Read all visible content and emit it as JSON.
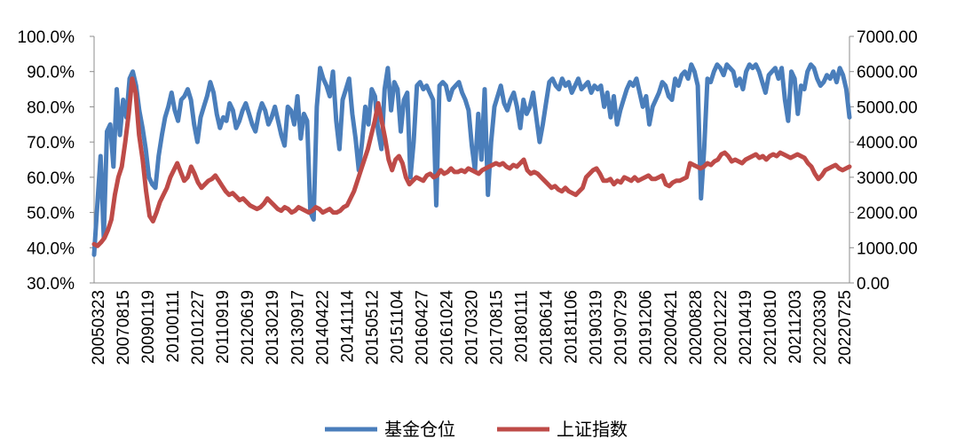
{
  "chart_data": {
    "type": "line",
    "x_tick_labels": [
      "20050323",
      "20070815",
      "20090119",
      "20100111",
      "20101227",
      "20110919",
      "20120619",
      "20130219",
      "20130917",
      "20140422",
      "20141114",
      "20150512",
      "20151104",
      "20160427",
      "20161024",
      "20170320",
      "20170815",
      "20180111",
      "20180614",
      "20181106",
      "20190319",
      "20190729",
      "20191206",
      "20200421",
      "20200828",
      "20201222",
      "20210419",
      "20210810",
      "20211203",
      "20220330",
      "20220725"
    ],
    "y_left": {
      "ticks": [
        "30.0%",
        "40.0%",
        "50.0%",
        "60.0%",
        "70.0%",
        "80.0%",
        "90.0%",
        "100.0%"
      ],
      "min": 30,
      "max": 100
    },
    "y_right": {
      "ticks": [
        "0.00",
        "1000.00",
        "2000.00",
        "3000.00",
        "4000.00",
        "5000.00",
        "6000.00",
        "7000.00"
      ],
      "min": 0,
      "max": 7000
    },
    "legend_position": "bottom",
    "series": [
      {
        "name": "基金仓位",
        "axis": "left",
        "color": "#4A7EBB",
        "values": [
          38,
          52,
          66,
          43,
          73,
          75,
          63,
          85,
          72,
          82,
          77,
          88,
          90,
          86,
          79,
          74,
          68,
          60,
          58,
          57,
          66,
          72,
          77,
          80,
          84,
          79,
          76,
          82,
          83,
          85,
          82,
          75,
          70,
          77,
          80,
          83,
          87,
          84,
          78,
          74,
          77,
          76,
          81,
          79,
          74,
          76,
          79,
          81,
          78,
          75,
          73,
          78,
          81,
          79,
          75,
          77,
          80,
          76,
          72,
          69,
          80,
          79,
          75,
          83,
          71,
          78,
          76,
          50,
          48,
          80,
          91,
          88,
          86,
          83,
          90,
          76,
          68,
          82,
          85,
          88,
          78,
          71,
          62,
          70,
          80,
          75,
          85,
          83,
          73,
          68,
          85,
          91,
          79,
          87,
          85,
          73,
          82,
          84,
          60,
          70,
          86,
          87,
          85,
          86,
          84,
          82,
          52,
          86,
          87,
          86,
          82,
          85,
          86,
          87,
          84,
          82,
          79,
          69,
          62,
          78,
          65,
          85,
          55,
          70,
          80,
          83,
          86,
          81,
          79,
          82,
          84,
          80,
          74,
          82,
          78,
          80,
          84,
          77,
          70,
          75,
          81,
          87,
          88,
          86,
          85,
          88,
          86,
          87,
          84,
          86,
          88,
          85,
          86,
          87,
          84,
          86,
          85,
          86,
          80,
          84,
          77,
          83,
          75,
          79,
          82,
          85,
          87,
          86,
          88,
          84,
          80,
          83,
          75,
          80,
          82,
          84,
          87,
          86,
          83,
          82,
          88,
          86,
          89,
          90,
          88,
          92,
          90,
          86,
          54,
          68,
          88,
          87,
          90,
          92,
          91,
          89,
          92,
          91,
          90,
          86,
          88,
          85,
          90,
          92,
          91,
          92,
          90,
          87,
          84,
          89,
          90,
          91,
          88,
          91,
          82,
          76,
          90,
          88,
          78,
          86,
          85,
          90,
          92,
          91,
          88,
          86,
          87,
          89,
          88,
          90,
          87,
          91,
          89,
          85,
          77
        ]
      },
      {
        "name": "上证指数",
        "axis": "right",
        "color": "#BE4B48",
        "values": [
          1100,
          1050,
          1150,
          1280,
          1500,
          1800,
          2500,
          3000,
          3300,
          4000,
          4800,
          5800,
          5400,
          4200,
          3500,
          2600,
          1900,
          1750,
          2000,
          2300,
          2500,
          2700,
          3000,
          3200,
          3400,
          3150,
          2900,
          3000,
          3300,
          3100,
          2850,
          2700,
          2800,
          2900,
          2950,
          3050,
          2900,
          2750,
          2600,
          2500,
          2550,
          2450,
          2350,
          2400,
          2300,
          2200,
          2150,
          2100,
          2150,
          2250,
          2400,
          2300,
          2200,
          2100,
          2050,
          2150,
          2100,
          2000,
          2050,
          2150,
          2100,
          2050,
          2000,
          2050,
          2150,
          2100,
          2000,
          2050,
          2100,
          2000,
          2000,
          2050,
          2150,
          2200,
          2400,
          2600,
          2900,
          3200,
          3500,
          3800,
          4200,
          4600,
          5100,
          4600,
          4100,
          3500,
          3200,
          3500,
          3600,
          3400,
          3000,
          2800,
          2900,
          3000,
          2950,
          2900,
          3050,
          3100,
          3000,
          3050,
          3200,
          3100,
          3150,
          3250,
          3150,
          3150,
          3200,
          3150,
          3250,
          3200,
          3150,
          3100,
          3200,
          3250,
          3300,
          3350,
          3400,
          3350,
          3400,
          3300,
          3250,
          3350,
          3300,
          3400,
          3500,
          3200,
          3100,
          3150,
          3100,
          3000,
          2900,
          2800,
          2700,
          2750,
          2650,
          2600,
          2700,
          2600,
          2550,
          2500,
          2600,
          2700,
          3000,
          3100,
          3200,
          3250,
          3100,
          2900,
          2900,
          2950,
          2800,
          2900,
          2850,
          3000,
          2950,
          2900,
          3000,
          2900,
          2950,
          3000,
          3050,
          2950,
          2950,
          3000,
          3050,
          2800,
          2750,
          2850,
          2900,
          2900,
          2950,
          3000,
          3400,
          3350,
          3300,
          3250,
          3300,
          3400,
          3350,
          3450,
          3500,
          3650,
          3700,
          3600,
          3450,
          3500,
          3450,
          3400,
          3500,
          3550,
          3600,
          3650,
          3550,
          3600,
          3500,
          3600,
          3650,
          3600,
          3700,
          3650,
          3600,
          3550,
          3600,
          3650,
          3600,
          3550,
          3400,
          3300,
          3100,
          2950,
          3050,
          3200,
          3250,
          3300,
          3350,
          3250,
          3200,
          3250,
          3300
        ]
      }
    ]
  }
}
